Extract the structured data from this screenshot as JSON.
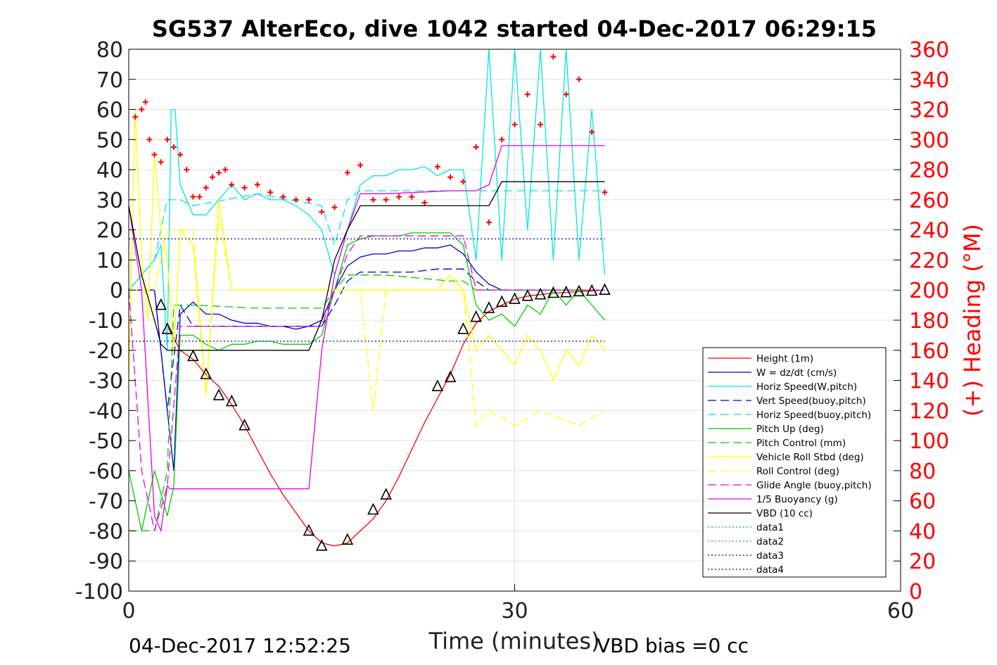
{
  "page": {
    "footer_left": "04-Dec-2017 12:52:25",
    "footer_right": "VBD bias =0 cc"
  },
  "chart_data": {
    "type": "line",
    "title": "SG537 AlterEco, dive 1042 started 04-Dec-2017 06:29:15",
    "xlabel": "Time (minutes)",
    "ylabel": "",
    "y2label": "(+) Heading (°M)",
    "xlim": [
      0,
      60
    ],
    "ylim": [
      -100,
      80
    ],
    "y2lim": [
      0,
      360
    ],
    "xticks": [
      0,
      30,
      60
    ],
    "yticks": [
      80,
      70,
      60,
      50,
      40,
      30,
      20,
      10,
      0,
      -10,
      -20,
      -30,
      -40,
      -50,
      -60,
      -70,
      -80,
      -90,
      -100
    ],
    "y2ticks": [
      360,
      340,
      320,
      300,
      280,
      260,
      240,
      220,
      200,
      180,
      160,
      140,
      120,
      100,
      80,
      60,
      40,
      20,
      0
    ],
    "grid": true,
    "legend_position": "bottom-right",
    "colors": {
      "red": "#ff0000",
      "blue": "#0000cc",
      "cyan": "#00e5e5",
      "green": "#00cc00",
      "yellow": "#ffff00",
      "magenta": "#e500e5",
      "black": "#000000",
      "axis_right": "#ff0000"
    },
    "series": [
      {
        "name": "Height (1m)",
        "color": "#ff0000",
        "style": "solid",
        "x": [
          3,
          4,
          5,
          6,
          7,
          8,
          9,
          10,
          11,
          12,
          13,
          14,
          15,
          16,
          17,
          18,
          19,
          20,
          21,
          22,
          23,
          24,
          25,
          26,
          27,
          28,
          29,
          30,
          31,
          32,
          33,
          34,
          35,
          36,
          37
        ],
        "y": [
          -12,
          -20,
          -23,
          -28,
          -32,
          -38,
          -45,
          -53,
          -61,
          -68,
          -74,
          -80,
          -84,
          -85,
          -84,
          -80,
          -76,
          -70,
          -62,
          -53,
          -44,
          -36,
          -28,
          -18,
          -11,
          -7,
          -5,
          -3,
          -2,
          -1.5,
          -1,
          -0.8,
          -0.5,
          -0.3,
          0
        ]
      },
      {
        "name": "W = dz/dt (cm/s)",
        "color": "#0000cc",
        "style": "solid",
        "x": [
          0,
          1,
          2,
          3,
          3.5,
          4,
          5,
          6,
          7,
          8,
          9,
          10,
          11,
          12,
          13,
          14,
          15,
          16,
          17,
          18,
          19,
          20,
          21,
          22,
          23,
          24,
          25,
          26,
          27,
          28,
          29,
          30,
          31,
          32,
          33,
          34,
          35,
          36,
          37
        ],
        "y": [
          0,
          0,
          0,
          -40,
          -60,
          -8,
          -4,
          -8,
          -8,
          -10,
          -11,
          -11,
          -12,
          -12,
          -13,
          -12,
          -10,
          0,
          8,
          11,
          12,
          12,
          13,
          13,
          14,
          14,
          15,
          12,
          6,
          2,
          0,
          0,
          0,
          0,
          0,
          0,
          0,
          0,
          0
        ]
      },
      {
        "name": "Horiz Speed(W,pitch)",
        "color": "#00e5e5",
        "style": "solid",
        "x": [
          0,
          1,
          2,
          2.5,
          3,
          3.3,
          3.6,
          4,
          5,
          6,
          7,
          8,
          9,
          10,
          11,
          12,
          13,
          14,
          15,
          16,
          17,
          18,
          19,
          20,
          21,
          22,
          23,
          24,
          25,
          26,
          27,
          28,
          29,
          30,
          31,
          32,
          33,
          34,
          35,
          36,
          37
        ],
        "y": [
          0,
          5,
          10,
          15,
          -20,
          60,
          60,
          35,
          25,
          25,
          30,
          35,
          30,
          32,
          30,
          30,
          28,
          25,
          20,
          5,
          20,
          35,
          38,
          38,
          40,
          40,
          41,
          38,
          40,
          40,
          10,
          80,
          10,
          80,
          20,
          80,
          10,
          80,
          10,
          60,
          5
        ]
      },
      {
        "name": "Vert Speed(buoy,pitch)",
        "color": "#0000cc",
        "style": "dashed",
        "x": [
          0,
          2,
          3,
          4,
          5,
          10,
          15,
          16,
          17,
          18,
          20,
          22,
          24,
          26,
          27,
          28,
          29,
          30,
          35,
          37
        ],
        "y": [
          0,
          0,
          -40,
          -5,
          -12,
          -12,
          -12,
          -5,
          3,
          6,
          6,
          6,
          7,
          7,
          3,
          0,
          0,
          0,
          0,
          0
        ]
      },
      {
        "name": "Horiz Speed(buoy,pitch)",
        "color": "#00e5e5",
        "style": "dashed",
        "x": [
          0,
          2,
          3,
          4,
          5,
          10,
          15,
          16,
          17,
          18,
          20,
          22,
          24,
          26,
          27,
          28,
          29,
          30,
          35,
          37
        ],
        "y": [
          0,
          10,
          30,
          30,
          28,
          32,
          28,
          15,
          30,
          33,
          33,
          33,
          33,
          33,
          33,
          33,
          33,
          33,
          33,
          33
        ]
      },
      {
        "name": "Pitch Up (deg)",
        "color": "#00cc00",
        "style": "solid",
        "x": [
          0,
          1,
          2,
          3,
          3.5,
          4,
          5,
          6,
          7,
          8,
          9,
          10,
          11,
          12,
          13,
          14,
          15,
          16,
          17,
          18,
          19,
          20,
          21,
          22,
          23,
          24,
          25,
          26,
          27,
          28,
          29,
          30,
          31,
          32,
          33,
          34,
          35,
          36,
          37
        ],
        "y": [
          -60,
          -80,
          -60,
          -75,
          -65,
          -15,
          -15,
          -18,
          -20,
          -18,
          -18,
          -17,
          -17,
          -18,
          -18,
          -18,
          -15,
          0,
          15,
          17,
          18,
          18,
          18,
          19,
          19,
          19,
          19,
          15,
          -5,
          -10,
          -8,
          -12,
          -5,
          -8,
          0,
          -5,
          0,
          -5,
          -10
        ]
      },
      {
        "name": "Pitch Control (mm)",
        "color": "#00cc00",
        "style": "dashed",
        "x": [
          0,
          2,
          3,
          3.5,
          4,
          5,
          10,
          15,
          16,
          17,
          18,
          20,
          25,
          26,
          27,
          28,
          30,
          35,
          37
        ],
        "y": [
          -80,
          -80,
          -60,
          -5,
          -5,
          -5,
          -6,
          -6,
          0,
          5,
          5,
          5,
          3,
          3,
          0,
          0,
          0,
          0,
          0
        ]
      },
      {
        "name": "Vehicle Roll Stbd (deg)",
        "color": "#ffff00",
        "style": "solid",
        "x": [
          0,
          0.5,
          1,
          1.5,
          2,
          2.5,
          3,
          3.5,
          4,
          5,
          6,
          7,
          8,
          9,
          10,
          11,
          12,
          13,
          14,
          15,
          16,
          17,
          18,
          19,
          20,
          21,
          22,
          23,
          24,
          25,
          26,
          27,
          28,
          29,
          30,
          31,
          32,
          33,
          34,
          35,
          36,
          37
        ],
        "y": [
          -30,
          60,
          10,
          -10,
          45,
          20,
          10,
          -20,
          20,
          15,
          -35,
          30,
          0,
          0,
          0,
          0,
          0,
          0,
          0,
          0,
          0,
          0,
          0,
          0,
          0,
          0,
          0,
          0,
          0,
          5,
          0,
          -20,
          -15,
          -20,
          -25,
          -15,
          -20,
          -30,
          -20,
          -25,
          -15,
          -20
        ]
      },
      {
        "name": "Roll Control (deg)",
        "color": "#ffff00",
        "style": "dashed",
        "x": [
          0,
          2,
          3,
          4,
          5,
          6,
          7,
          8,
          10,
          15,
          18,
          19,
          20,
          22,
          24,
          26,
          27,
          28,
          30,
          32,
          35,
          37
        ],
        "y": [
          0,
          0,
          20,
          20,
          20,
          -35,
          25,
          0,
          0,
          0,
          0,
          -40,
          0,
          0,
          0,
          0,
          -45,
          -40,
          -45,
          -40,
          -45,
          -40
        ]
      },
      {
        "name": "Glide Angle (buoy,pitch)",
        "color": "#e500e5",
        "style": "dashed",
        "x": [
          0,
          1,
          2,
          3,
          4,
          5,
          10,
          15,
          16,
          17,
          18,
          20,
          25,
          26,
          27,
          28,
          30,
          35,
          37
        ],
        "y": [
          0,
          -60,
          -80,
          -65,
          -12,
          -12,
          -12,
          -12,
          0,
          12,
          18,
          18,
          18,
          18,
          0,
          0,
          0,
          0,
          0
        ]
      },
      {
        "name": "1/5 Buoyancy (g)",
        "color": "#e500e5",
        "style": "solid",
        "x": [
          0,
          1,
          2,
          2.5,
          3,
          3.2,
          5,
          10,
          13,
          14,
          15,
          16,
          17,
          18,
          20,
          25,
          26,
          27,
          28,
          29,
          30,
          35,
          37
        ],
        "y": [
          28,
          0,
          -75,
          -80,
          -65,
          -66,
          -66,
          -66,
          -66,
          -66,
          -20,
          5,
          20,
          32,
          32,
          33,
          33,
          33,
          35,
          48,
          48,
          48,
          48
        ]
      },
      {
        "name": "VBD (10 cc)",
        "color": "#000000",
        "style": "solid",
        "x": [
          0,
          1,
          2,
          2.5,
          3,
          5,
          10,
          14,
          15,
          16,
          17,
          18,
          20,
          25,
          26,
          27,
          28,
          29,
          30,
          35,
          37
        ],
        "y": [
          28,
          5,
          -10,
          -18,
          -20,
          -20,
          -20,
          -20,
          -10,
          10,
          20,
          28,
          28,
          28,
          28,
          28,
          28,
          36,
          36,
          36,
          36
        ]
      },
      {
        "name": "data1",
        "color": "#00cc00",
        "style": "dotted",
        "x": [],
        "y": []
      },
      {
        "name": "data2",
        "color": "#00cc00",
        "style": "dotted",
        "x": [],
        "y": []
      },
      {
        "name": "data3",
        "color": "#0000cc",
        "style": "dotted",
        "x": [
          0,
          37
        ],
        "y": [
          17,
          17
        ]
      },
      {
        "name": "data4",
        "color": "#0000cc",
        "style": "dotted",
        "x": [
          0,
          37
        ],
        "y": [
          -17,
          -17
        ]
      }
    ],
    "heading_points": {
      "name": "(+) Heading",
      "axis": "right",
      "marker": "+",
      "color": "#ff0000",
      "x": [
        0.5,
        1,
        1.3,
        1.6,
        2,
        2.5,
        3,
        3.5,
        4,
        4.5,
        5,
        5.5,
        6,
        6.5,
        7,
        7.5,
        8,
        9,
        10,
        11,
        12,
        13,
        14,
        15,
        16,
        17,
        18,
        19,
        20,
        21,
        22,
        23,
        24,
        25,
        26,
        27,
        28,
        29,
        30,
        31,
        32,
        33,
        34,
        35,
        36,
        37
      ],
      "y": [
        315,
        320,
        325,
        300,
        290,
        285,
        300,
        295,
        290,
        280,
        262,
        262,
        268,
        275,
        278,
        280,
        270,
        268,
        270,
        265,
        262,
        260,
        260,
        252,
        255,
        278,
        283,
        260,
        260,
        262,
        262,
        258,
        282,
        275,
        272,
        295,
        245,
        300,
        310,
        330,
        310,
        355,
        330,
        340,
        305,
        265
      ]
    },
    "depth_markers": {
      "marker": "triangle",
      "color": "#000000",
      "x": [
        2.5,
        3,
        5,
        6,
        7,
        8,
        9,
        14,
        15,
        17,
        19,
        20,
        24,
        25,
        26,
        27,
        28,
        29,
        30,
        31,
        32,
        33,
        34,
        35,
        36,
        37
      ],
      "y": [
        -5,
        -13,
        -22,
        -28,
        -35,
        -37,
        -45,
        -80,
        -85,
        -83,
        -73,
        -68,
        -32,
        -29,
        -13,
        -9,
        -6,
        -4,
        -3,
        -2,
        -1.5,
        -1,
        -0.8,
        -0.5,
        -0.3,
        0
      ]
    }
  }
}
